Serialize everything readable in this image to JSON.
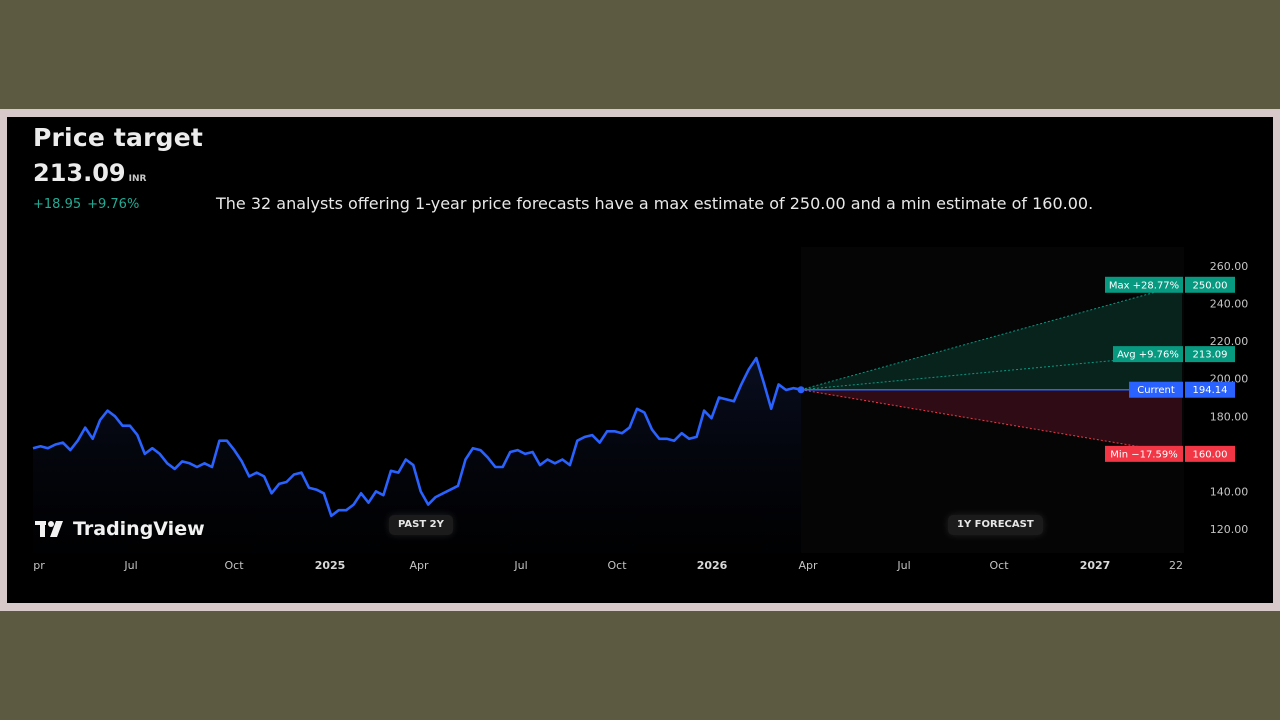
{
  "header": {
    "title": "Price target",
    "price": "213.09",
    "currency": "INR",
    "change_abs": "+18.95",
    "change_pct": "+9.76%",
    "summary": "The 32 analysts offering 1-year price forecasts have a max estimate of 250.00 and a min estimate of 160.00."
  },
  "branding": {
    "logo_text": "TradingView"
  },
  "periods": {
    "past": "PAST 2Y",
    "forecast": "1Y FORECAST"
  },
  "colors": {
    "line": "#2962ff",
    "max": "#089981",
    "avg": "#089981",
    "min": "#f23645",
    "current": "#2962ff"
  },
  "chart_data": {
    "type": "line",
    "title": "Price target",
    "ylabel": "INR",
    "ylim": [
      110,
      265
    ],
    "y_ticks": [
      "260.00",
      "240.00",
      "220.00",
      "200.00",
      "180.00",
      "140.00",
      "120.00"
    ],
    "x_ticks": [
      "pr",
      "Jul",
      "Oct",
      "2025",
      "Apr",
      "Jul",
      "Oct",
      "2026",
      "Apr",
      "Jul",
      "Oct",
      "2027",
      "22"
    ],
    "series": [
      {
        "name": "Price",
        "values": [
          163,
          164,
          163,
          165,
          166,
          162,
          167,
          174,
          168,
          178,
          183,
          180,
          175,
          175,
          170,
          160,
          163,
          160,
          155,
          152,
          156,
          155,
          153,
          155,
          153,
          167,
          167,
          162,
          156,
          148,
          150,
          148,
          139,
          144,
          145,
          149,
          150,
          142,
          141,
          139,
          127,
          130,
          130,
          133,
          139,
          134,
          140,
          138,
          151,
          150,
          157,
          154,
          140,
          133,
          137,
          139,
          141,
          143,
          157,
          163,
          162,
          158,
          153,
          153,
          161,
          162,
          160,
          161,
          154,
          157,
          155,
          157,
          154,
          167,
          169,
          170,
          166,
          172,
          172,
          171,
          174,
          184,
          182,
          173,
          168,
          168,
          167,
          171,
          168,
          169,
          183,
          179,
          190,
          189,
          188,
          197,
          205,
          211,
          198,
          184,
          197,
          194,
          195,
          194.14
        ]
      }
    ],
    "forecast": {
      "current": {
        "label": "Current",
        "value": "194.14"
      },
      "max": {
        "label": "Max +28.77%",
        "value": "250.00"
      },
      "avg": {
        "label": "Avg +9.76%",
        "value": "213.09"
      },
      "min": {
        "label": "Min −17.59%",
        "value": "160.00"
      }
    }
  }
}
